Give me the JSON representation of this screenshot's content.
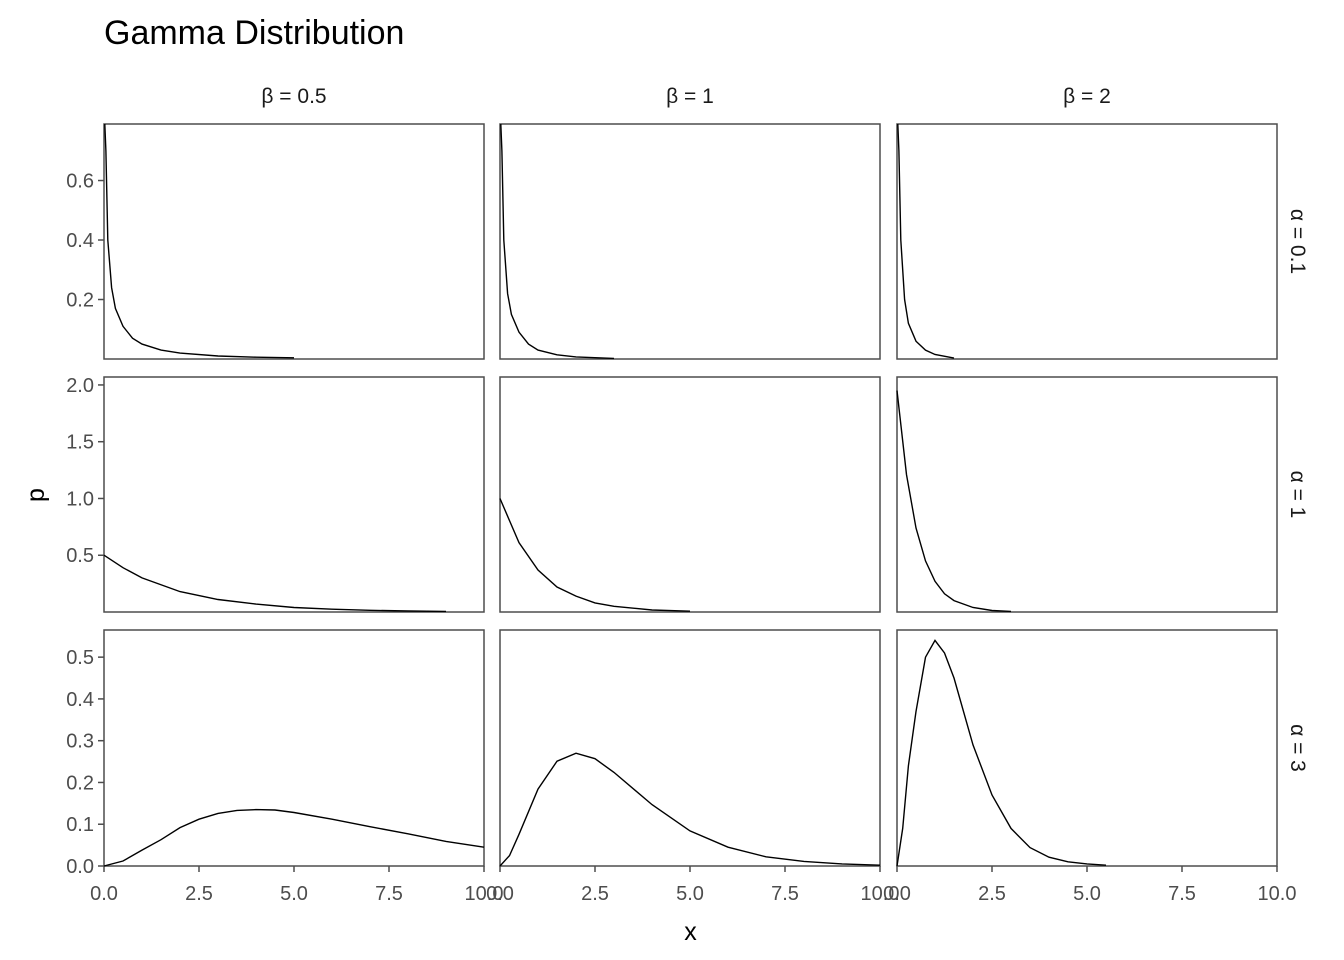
{
  "chart_data": {
    "type": "line",
    "title": "Gamma Distribution",
    "xlabel": "x",
    "ylabel": "p",
    "x_range": [
      0,
      10
    ],
    "x_ticks": [
      "0.0",
      "2.5",
      "5.0",
      "7.5",
      "10.0"
    ],
    "grid": false,
    "legend": "none",
    "facet_columns": [
      {
        "label": "β = 0.5",
        "beta": 0.5
      },
      {
        "label": "β = 1",
        "beta": 1
      },
      {
        "label": "β = 2",
        "beta": 2
      }
    ],
    "facet_rows": [
      {
        "label": "α = 0.1",
        "alpha": 0.1,
        "y_range": [
          0,
          0.79
        ],
        "y_ticks": [
          "0.2",
          "0.4",
          "0.6"
        ]
      },
      {
        "label": "α = 1",
        "alpha": 1,
        "y_range": [
          0,
          2.07
        ],
        "y_ticks": [
          "0.5",
          "1.0",
          "1.5",
          "2.0"
        ]
      },
      {
        "label": "α = 3",
        "alpha": 3,
        "y_range": [
          0,
          0.565
        ],
        "y_ticks": [
          "0.0",
          "0.1",
          "0.2",
          "0.3",
          "0.4",
          "0.5"
        ]
      }
    ],
    "panels": [
      {
        "row": 0,
        "col": 0,
        "x": [
          0.02,
          0.05,
          0.1,
          0.2,
          0.3,
          0.5,
          0.75,
          1,
          1.5,
          2,
          3,
          4,
          5
        ],
        "y": [
          0.79,
          0.7,
          0.4,
          0.24,
          0.17,
          0.11,
          0.07,
          0.05,
          0.03,
          0.02,
          0.01,
          0.006,
          0.004
        ]
      },
      {
        "row": 0,
        "col": 1,
        "x": [
          0.02,
          0.05,
          0.1,
          0.2,
          0.3,
          0.5,
          0.75,
          1,
          1.5,
          2,
          3
        ],
        "y": [
          0.79,
          0.7,
          0.4,
          0.22,
          0.15,
          0.09,
          0.05,
          0.03,
          0.014,
          0.007,
          0.002
        ]
      },
      {
        "row": 0,
        "col": 2,
        "x": [
          0.02,
          0.05,
          0.1,
          0.2,
          0.3,
          0.5,
          0.75,
          1,
          1.5
        ],
        "y": [
          0.79,
          0.7,
          0.4,
          0.2,
          0.12,
          0.06,
          0.03,
          0.015,
          0.003
        ]
      },
      {
        "row": 1,
        "col": 0,
        "x": [
          0,
          0.5,
          1,
          2,
          3,
          4,
          5,
          6,
          7,
          8,
          9
        ],
        "y": [
          0.5,
          0.39,
          0.3,
          0.18,
          0.11,
          0.07,
          0.04,
          0.025,
          0.015,
          0.009,
          0.005
        ]
      },
      {
        "row": 1,
        "col": 1,
        "x": [
          0,
          0.5,
          1,
          1.5,
          2,
          2.5,
          3,
          4,
          5
        ],
        "y": [
          1.0,
          0.61,
          0.37,
          0.22,
          0.14,
          0.08,
          0.05,
          0.018,
          0.007
        ]
      },
      {
        "row": 1,
        "col": 2,
        "x": [
          0,
          0.25,
          0.5,
          0.75,
          1,
          1.25,
          1.5,
          2,
          2.5,
          3
        ],
        "y": [
          1.95,
          1.21,
          0.74,
          0.45,
          0.27,
          0.16,
          0.1,
          0.04,
          0.013,
          0.005
        ]
      },
      {
        "row": 2,
        "col": 0,
        "x": [
          0,
          0.5,
          1,
          1.5,
          2,
          2.5,
          3,
          3.5,
          4,
          4.5,
          5,
          6,
          7,
          8,
          9,
          10
        ],
        "y": [
          0,
          0.012,
          0.038,
          0.063,
          0.092,
          0.112,
          0.126,
          0.133,
          0.135,
          0.134,
          0.128,
          0.112,
          0.094,
          0.077,
          0.059,
          0.045
        ]
      },
      {
        "row": 2,
        "col": 1,
        "x": [
          0,
          0.25,
          0.5,
          1,
          1.5,
          2,
          2.5,
          3,
          4,
          5,
          6,
          7,
          8,
          9,
          10
        ],
        "y": [
          0,
          0.025,
          0.076,
          0.184,
          0.251,
          0.27,
          0.257,
          0.224,
          0.147,
          0.084,
          0.045,
          0.022,
          0.011,
          0.005,
          0.002
        ]
      },
      {
        "row": 2,
        "col": 2,
        "x": [
          0,
          0.15,
          0.3,
          0.5,
          0.75,
          1,
          1.25,
          1.5,
          2,
          2.5,
          3,
          3.5,
          4,
          4.5,
          5,
          5.5
        ],
        "y": [
          0,
          0.09,
          0.24,
          0.37,
          0.5,
          0.54,
          0.51,
          0.45,
          0.29,
          0.17,
          0.09,
          0.044,
          0.021,
          0.01,
          0.005,
          0.002
        ]
      }
    ]
  }
}
